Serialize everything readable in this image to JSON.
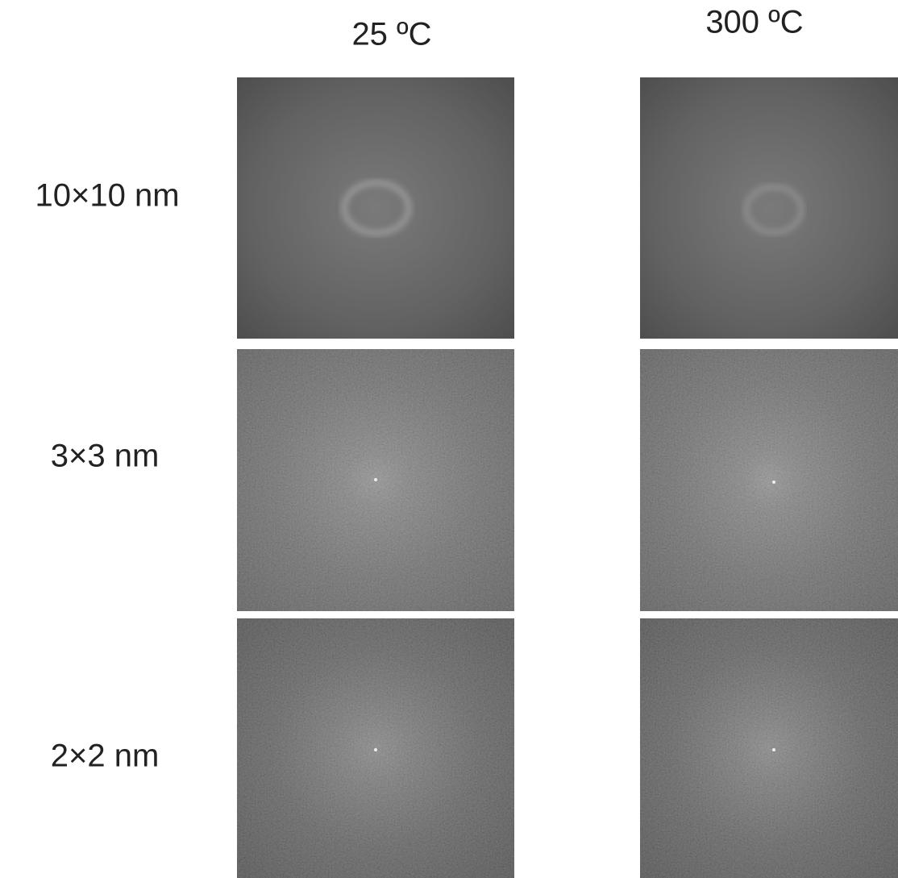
{
  "columns": [
    "25 ºC",
    "300 ºC"
  ],
  "rows": [
    "10×10 nm",
    "3×3 nm",
    "2×2 nm"
  ]
}
